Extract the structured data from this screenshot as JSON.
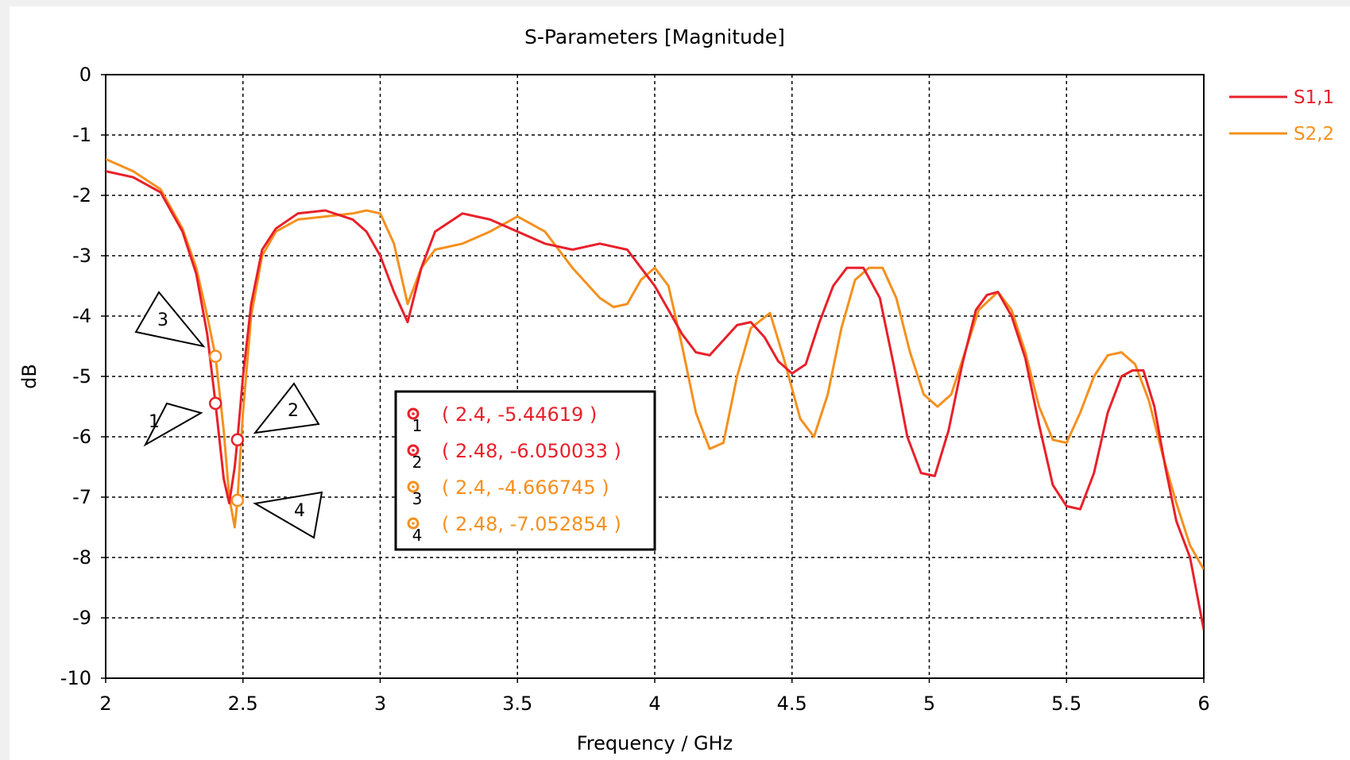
{
  "chart_data": {
    "type": "line",
    "title": "S-Parameters [Magnitude]",
    "xlabel": "Frequency / GHz",
    "ylabel": "dB",
    "xlim": [
      2,
      6
    ],
    "ylim": [
      -10,
      0
    ],
    "xticks": [
      "2",
      "2.5",
      "3",
      "3.5",
      "4",
      "4.5",
      "5",
      "5.5",
      "6"
    ],
    "yticks": [
      "0",
      "-1",
      "-2",
      "-3",
      "-4",
      "-5",
      "-6",
      "-7",
      "-8",
      "-9",
      "-10"
    ],
    "grid": true,
    "legend_position": "right",
    "series": [
      {
        "name": "S1,1",
        "color": "#e8202a",
        "x": [
          2.0,
          2.1,
          2.2,
          2.28,
          2.33,
          2.37,
          2.4,
          2.43,
          2.45,
          2.47,
          2.48,
          2.5,
          2.53,
          2.57,
          2.62,
          2.7,
          2.8,
          2.9,
          2.95,
          3.0,
          3.05,
          3.1,
          3.15,
          3.2,
          3.3,
          3.4,
          3.5,
          3.6,
          3.7,
          3.8,
          3.9,
          3.95,
          4.0,
          4.05,
          4.1,
          4.15,
          4.2,
          4.25,
          4.3,
          4.35,
          4.4,
          4.45,
          4.5,
          4.55,
          4.6,
          4.65,
          4.7,
          4.76,
          4.82,
          4.87,
          4.92,
          4.97,
          5.02,
          5.07,
          5.12,
          5.17,
          5.21,
          5.25,
          5.3,
          5.35,
          5.4,
          5.45,
          5.5,
          5.55,
          5.6,
          5.65,
          5.7,
          5.74,
          5.78,
          5.82,
          5.86,
          5.9,
          5.95,
          6.0
        ],
        "y": [
          -1.6,
          -1.7,
          -1.95,
          -2.6,
          -3.3,
          -4.3,
          -5.44619,
          -6.7,
          -7.1,
          -6.5,
          -6.050033,
          -5.0,
          -3.8,
          -2.9,
          -2.55,
          -2.3,
          -2.25,
          -2.4,
          -2.6,
          -3.0,
          -3.6,
          -4.1,
          -3.2,
          -2.6,
          -2.3,
          -2.4,
          -2.6,
          -2.8,
          -2.9,
          -2.8,
          -2.9,
          -3.2,
          -3.5,
          -3.9,
          -4.3,
          -4.6,
          -4.65,
          -4.4,
          -4.15,
          -4.1,
          -4.35,
          -4.75,
          -4.95,
          -4.8,
          -4.1,
          -3.5,
          -3.2,
          -3.2,
          -3.7,
          -4.8,
          -6.0,
          -6.6,
          -6.65,
          -5.9,
          -4.8,
          -3.9,
          -3.65,
          -3.6,
          -4.0,
          -4.7,
          -5.8,
          -6.8,
          -7.15,
          -7.2,
          -6.6,
          -5.6,
          -5.0,
          -4.9,
          -4.9,
          -5.5,
          -6.5,
          -7.4,
          -8.0,
          -9.2
        ]
      },
      {
        "name": "S2,2",
        "color": "#f5901e",
        "x": [
          2.0,
          2.1,
          2.2,
          2.28,
          2.33,
          2.37,
          2.4,
          2.43,
          2.45,
          2.47,
          2.48,
          2.5,
          2.53,
          2.57,
          2.62,
          2.7,
          2.8,
          2.9,
          2.95,
          3.0,
          3.05,
          3.1,
          3.15,
          3.2,
          3.3,
          3.4,
          3.5,
          3.6,
          3.7,
          3.8,
          3.85,
          3.9,
          3.95,
          4.0,
          4.05,
          4.1,
          4.15,
          4.2,
          4.25,
          4.3,
          4.35,
          4.42,
          4.47,
          4.53,
          4.58,
          4.63,
          4.68,
          4.73,
          4.78,
          4.83,
          4.88,
          4.93,
          4.98,
          5.03,
          5.08,
          5.13,
          5.18,
          5.25,
          5.3,
          5.35,
          5.4,
          5.45,
          5.5,
          5.55,
          5.6,
          5.65,
          5.7,
          5.75,
          5.8,
          5.85,
          5.9,
          5.95,
          6.0
        ],
        "y": [
          -1.4,
          -1.6,
          -1.9,
          -2.55,
          -3.2,
          -4.0,
          -4.666745,
          -5.9,
          -7.0,
          -7.5,
          -7.052854,
          -5.6,
          -4.0,
          -3.0,
          -2.6,
          -2.4,
          -2.35,
          -2.3,
          -2.25,
          -2.3,
          -2.8,
          -3.8,
          -3.2,
          -2.9,
          -2.8,
          -2.6,
          -2.35,
          -2.6,
          -3.2,
          -3.7,
          -3.85,
          -3.8,
          -3.4,
          -3.2,
          -3.5,
          -4.5,
          -5.6,
          -6.2,
          -6.1,
          -5.0,
          -4.2,
          -3.95,
          -4.7,
          -5.7,
          -6.0,
          -5.3,
          -4.2,
          -3.4,
          -3.2,
          -3.2,
          -3.7,
          -4.6,
          -5.3,
          -5.5,
          -5.3,
          -4.6,
          -3.9,
          -3.6,
          -3.9,
          -4.6,
          -5.5,
          -6.05,
          -6.1,
          -5.6,
          -5.0,
          -4.65,
          -4.6,
          -4.8,
          -5.4,
          -6.3,
          -7.1,
          -7.8,
          -8.2
        ]
      }
    ],
    "markers": [
      {
        "id": "1",
        "x": 2.4,
        "y": -5.44619,
        "label": "( 2.4, -5.44619 )",
        "series": "S1,1"
      },
      {
        "id": "2",
        "x": 2.48,
        "y": -6.050033,
        "label": "( 2.48, -6.050033 )",
        "series": "S1,1"
      },
      {
        "id": "3",
        "x": 2.4,
        "y": -4.666745,
        "label": "( 2.4, -4.666745 )",
        "series": "S2,2"
      },
      {
        "id": "4",
        "x": 2.48,
        "y": -7.052854,
        "label": "( 2.48, -7.052854 )",
        "series": "S2,2"
      }
    ]
  }
}
